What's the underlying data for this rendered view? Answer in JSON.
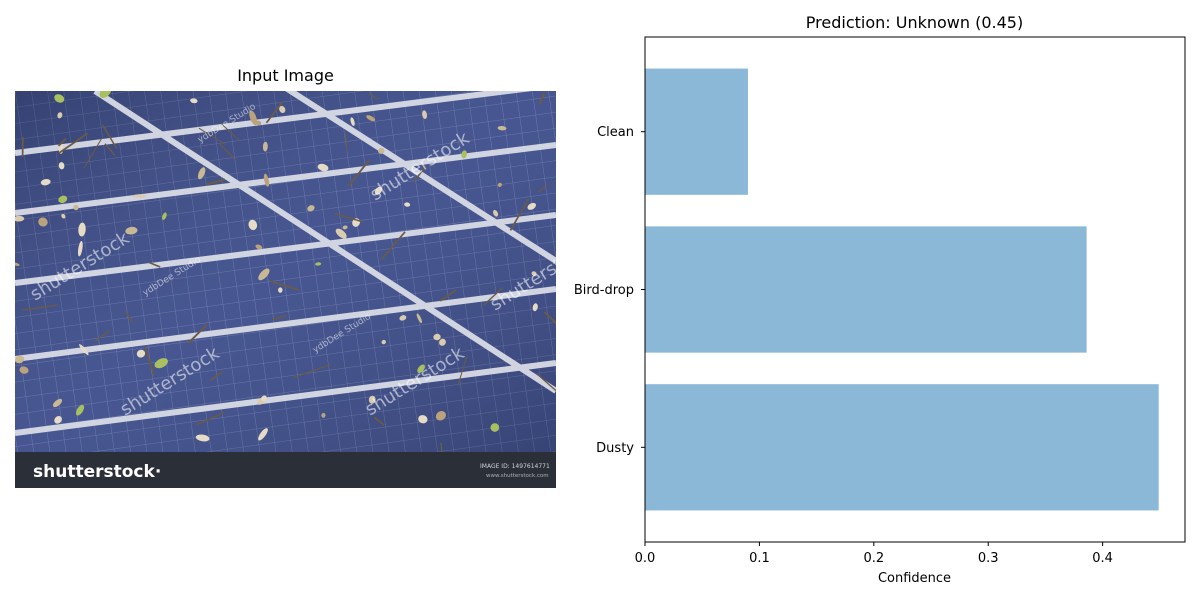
{
  "left_panel": {
    "title": "Input Image",
    "image": {
      "subject": "solar panels covered with dry leaves and twigs",
      "footer_brand": "shutterstock",
      "footer_brand_symbol": "·",
      "footer_image_id": "IMAGE ID: 1497614771",
      "footer_site": "www.shutterstock.com",
      "watermark": "shutterstock",
      "watermark_credit": "ydbDee Studio",
      "colors": {
        "panel": "#3f4f82",
        "frame": "#d9dce6",
        "footer": "#2b3038"
      }
    }
  },
  "chart_data": {
    "type": "bar",
    "orientation": "horizontal",
    "title": "Prediction: Unknown (0.45)",
    "xlabel": "Confidence",
    "ylabel": "",
    "categories": [
      "Clean",
      "Bird-drop",
      "Dusty"
    ],
    "values": [
      0.09,
      0.386,
      0.449
    ],
    "xlim": [
      0,
      0.472
    ],
    "xticks": [
      0.0,
      0.1,
      0.2,
      0.3,
      0.4
    ],
    "xtick_labels": [
      "0.0",
      "0.1",
      "0.2",
      "0.3",
      "0.4"
    ],
    "bar_color": "#8cb8d8",
    "grid": false,
    "legend": "none"
  }
}
